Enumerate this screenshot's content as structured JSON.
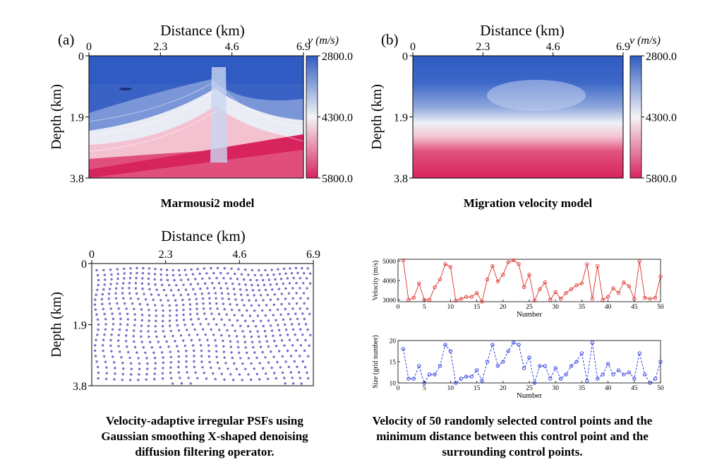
{
  "panel_a": {
    "letter": "(a)",
    "xlabel": "Distance (km)",
    "ylabel": "Depth (km)",
    "xticks": [
      "0",
      "2.3",
      "4.6",
      "6.9"
    ],
    "yticks": [
      "0",
      "1.9",
      "3.8"
    ],
    "colorbar_label": "v (m/s)",
    "colorbar_ticks": [
      "2800.0",
      "4300.0",
      "5800.0"
    ],
    "caption": "Marmousi2 model"
  },
  "panel_b": {
    "letter": "(b)",
    "xlabel": "Distance (km)",
    "ylabel": "Depth (km)",
    "xticks": [
      "0",
      "2.3",
      "4.6",
      "6.9"
    ],
    "yticks": [
      "0",
      "1.9",
      "3.8"
    ],
    "colorbar_label": "v (m/s)",
    "colorbar_ticks": [
      "2800.0",
      "4300.0",
      "5800.0"
    ],
    "caption": "Migration velocity model"
  },
  "panel_c": {
    "xlabel": "Distance (km)",
    "ylabel": "Depth (km)",
    "xticks": [
      "0",
      "2.3",
      "4.6",
      "6.9"
    ],
    "yticks": [
      "0",
      "1.9",
      "3.8"
    ],
    "caption_lines": [
      "Velocity-adaptive irregular PSFs using",
      "Gaussian smoothing X-shaped denoising",
      "diffusion filtering operator."
    ]
  },
  "panel_d": {
    "caption_lines": [
      "Velocity of 50 randomly selected control points and the",
      "minimum distance between this control point and the",
      "surrounding control points."
    ]
  },
  "colors": {
    "low": "#3a62c4",
    "mid": "#f4f4f6",
    "high": "#d8245e",
    "psf_dot": "#6a4fc0",
    "velocity_series": "#e0302a",
    "size_series": "#1f2ee0"
  },
  "chart_data": [
    {
      "type": "heatmap",
      "title": "Marmousi2 model",
      "xlabel": "Distance (km)",
      "ylabel": "Depth (km)",
      "xlim": [
        0,
        6.9
      ],
      "ylim": [
        0,
        3.8
      ],
      "colorbar_range": [
        2800,
        5800
      ],
      "colorbar_label": "v (m/s)"
    },
    {
      "type": "heatmap",
      "title": "Migration velocity model",
      "xlabel": "Distance (km)",
      "ylabel": "Depth (km)",
      "xlim": [
        0,
        6.9
      ],
      "ylim": [
        0,
        3.8
      ],
      "colorbar_range": [
        2800,
        5800
      ],
      "colorbar_label": "v (m/s)"
    },
    {
      "type": "line",
      "xlabel": "Number",
      "ylabel": "Velocity (m/s)",
      "xlim": [
        0,
        50
      ],
      "ylim": [
        2900,
        5100
      ],
      "xticks": [
        0,
        5,
        10,
        15,
        20,
        25,
        30,
        35,
        40,
        45,
        50
      ],
      "yticks": [
        3000,
        4000,
        5000
      ],
      "x": [
        1,
        2,
        3,
        4,
        5,
        6,
        7,
        8,
        9,
        10,
        11,
        12,
        13,
        14,
        15,
        16,
        17,
        18,
        19,
        20,
        21,
        22,
        23,
        24,
        25,
        26,
        27,
        28,
        29,
        30,
        31,
        32,
        33,
        34,
        35,
        36,
        37,
        38,
        39,
        40,
        41,
        42,
        43,
        44,
        45,
        46,
        47,
        48,
        49,
        50
      ],
      "values": [
        5050,
        3000,
        3100,
        3850,
        3000,
        3000,
        3650,
        4050,
        4850,
        4700,
        2950,
        3050,
        3150,
        3150,
        3350,
        2900,
        4050,
        4750,
        3950,
        4300,
        4950,
        5050,
        4850,
        3650,
        4300,
        2950,
        3550,
        3900,
        3000,
        3400,
        3050,
        3350,
        3550,
        3750,
        3850,
        4850,
        3050,
        4750,
        3000,
        3150,
        3600,
        3350,
        3900,
        3700,
        3050,
        5000,
        3100,
        3050,
        3100,
        4200
      ],
      "color": "#e0302a"
    },
    {
      "type": "line",
      "xlabel": "Number",
      "ylabel": "Size (grid number)",
      "xlim": [
        0,
        50
      ],
      "ylim": [
        10,
        20
      ],
      "xticks": [
        0,
        5,
        10,
        15,
        20,
        25,
        30,
        35,
        40,
        45,
        50
      ],
      "yticks": [
        10,
        15,
        20
      ],
      "x": [
        1,
        2,
        3,
        4,
        5,
        6,
        7,
        8,
        9,
        10,
        11,
        12,
        13,
        14,
        15,
        16,
        17,
        18,
        19,
        20,
        21,
        22,
        23,
        24,
        25,
        26,
        27,
        28,
        29,
        30,
        31,
        32,
        33,
        34,
        35,
        36,
        37,
        38,
        39,
        40,
        41,
        42,
        43,
        44,
        45,
        46,
        47,
        48,
        49,
        50
      ],
      "values": [
        18,
        11,
        11,
        14,
        10,
        12,
        12,
        14,
        19,
        17.5,
        10,
        11,
        11.5,
        11.5,
        13,
        10.5,
        15,
        19,
        14,
        15,
        17.5,
        19.5,
        19,
        13.5,
        16,
        10,
        14,
        14,
        11,
        13.5,
        11,
        12,
        14,
        15,
        17,
        10.5,
        19.5,
        11,
        12,
        14.5,
        12,
        13,
        12,
        12.5,
        11,
        17,
        12,
        10,
        11,
        15
      ],
      "color": "#1f2ee0"
    }
  ]
}
